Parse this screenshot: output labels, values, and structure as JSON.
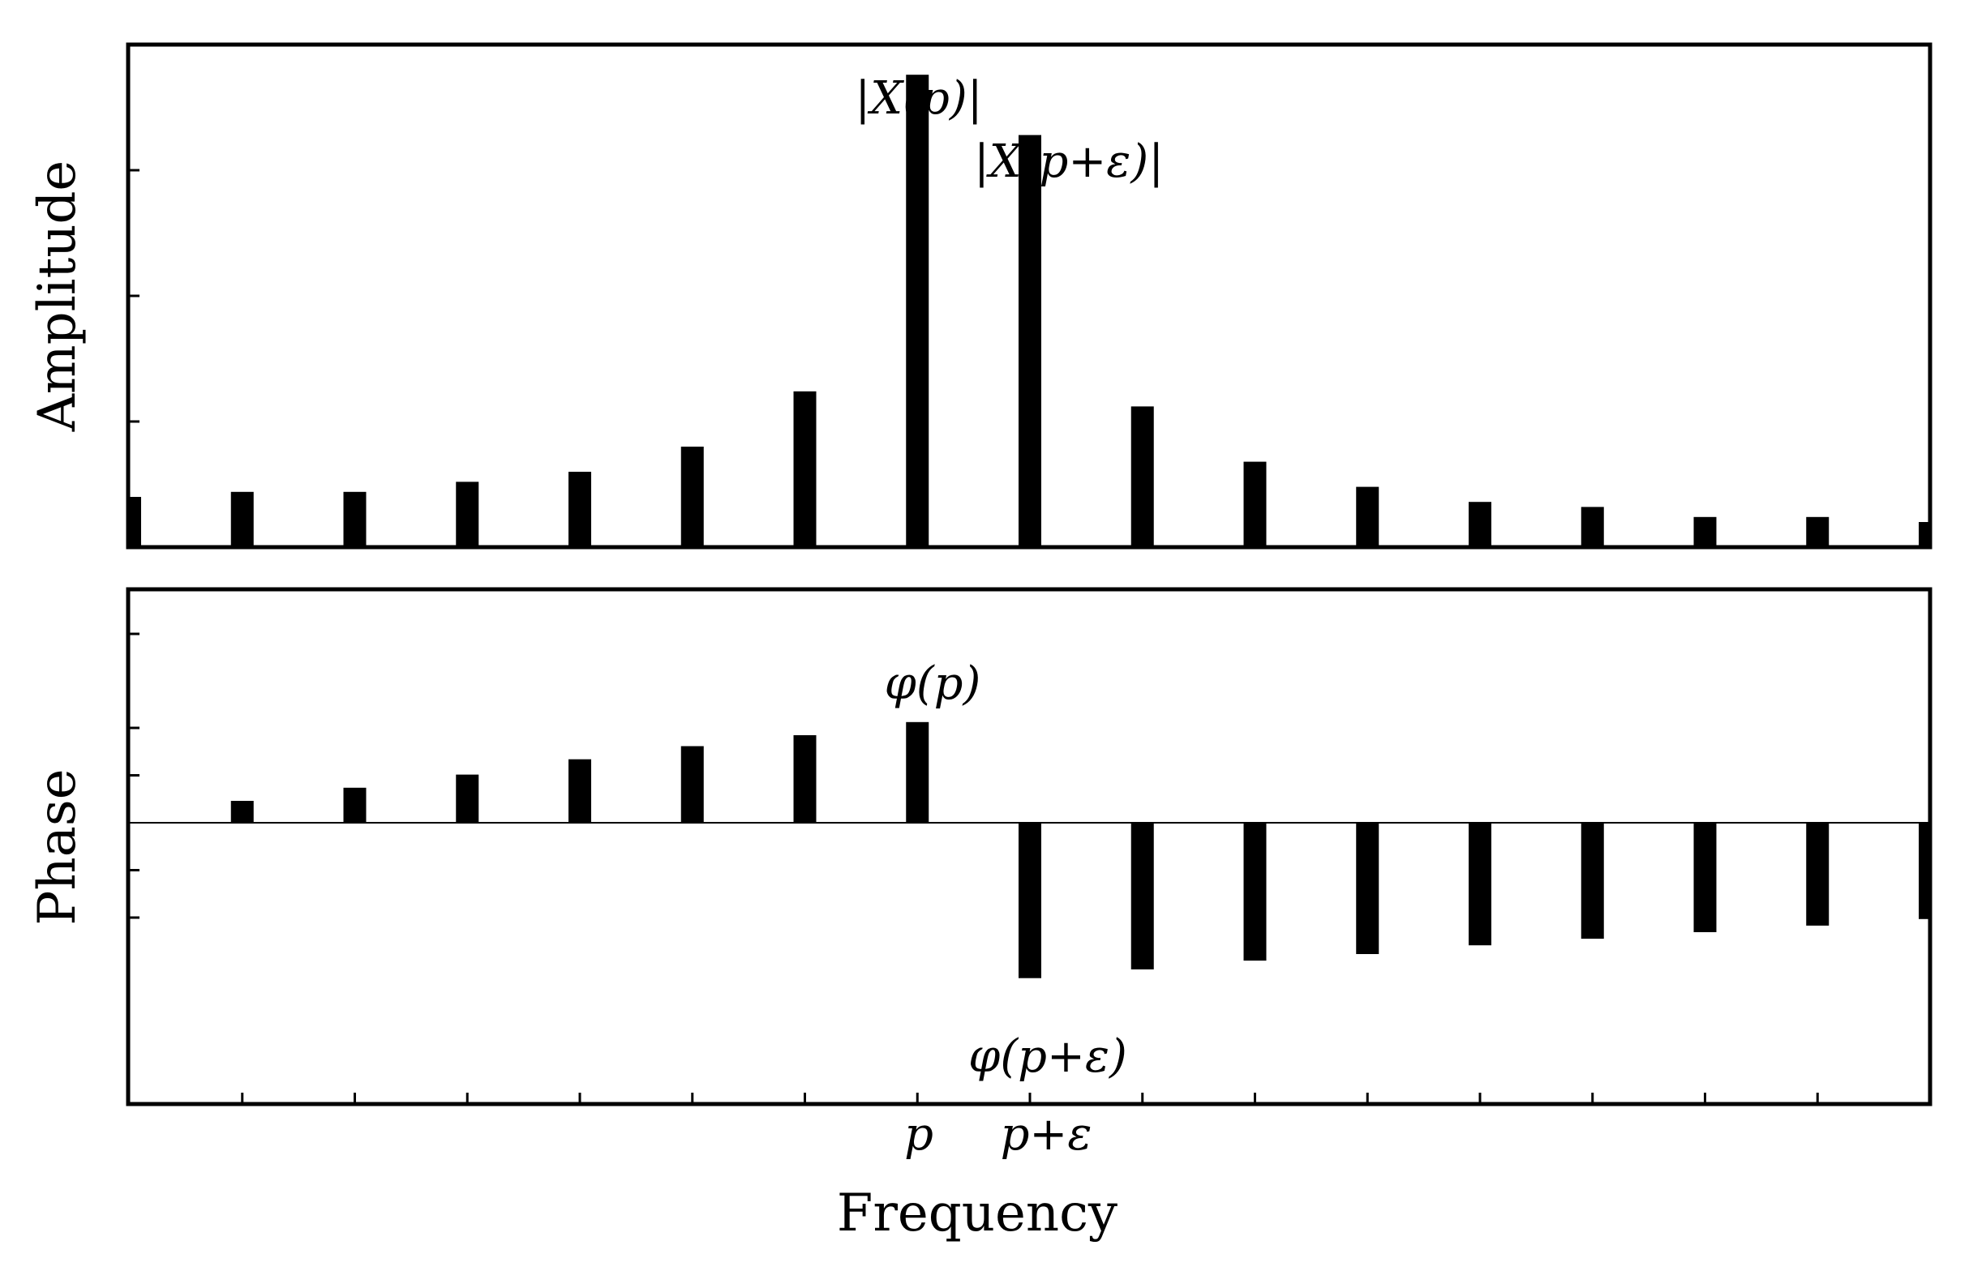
{
  "chart_data": [
    {
      "type": "bar",
      "title": "",
      "xlabel": "",
      "ylabel": "Amplitude",
      "x": [
        0,
        1,
        2,
        3,
        4,
        5,
        6,
        7,
        8,
        9,
        10,
        11,
        12,
        13,
        14,
        15,
        16
      ],
      "values": [
        10,
        11,
        11,
        13,
        15,
        20,
        31,
        94,
        82,
        28,
        17,
        12,
        9,
        8,
        6,
        6,
        5
      ],
      "ylim": [
        0,
        100
      ],
      "xlim": [
        0,
        16
      ],
      "annotations": [
        {
          "text": "|X(p)|",
          "x": 7
        },
        {
          "text": "|X(p+ε)|",
          "x": 8
        }
      ]
    },
    {
      "type": "bar",
      "title": "",
      "xlabel": "Frequency",
      "ylabel": "Phase",
      "x": [
        1,
        2,
        3,
        4,
        5,
        6,
        7,
        8,
        9,
        10,
        11,
        12,
        13,
        14,
        15,
        16
      ],
      "values": [
        1.0,
        1.6,
        2.2,
        2.9,
        3.5,
        4.0,
        4.6,
        -7.1,
        -6.7,
        -6.3,
        -6.0,
        -5.6,
        -5.3,
        -5.0,
        -4.7,
        -4.4
      ],
      "ylim": [
        -10,
        10
      ],
      "xlim": [
        0,
        16
      ],
      "x_tick_labels": [
        {
          "x": 7,
          "label": "p"
        },
        {
          "x": 8,
          "label": "p+ε"
        }
      ],
      "annotations": [
        {
          "text": "φ(p)",
          "x": 7
        },
        {
          "text": "φ(p+ε)",
          "x": 8
        }
      ]
    }
  ]
}
